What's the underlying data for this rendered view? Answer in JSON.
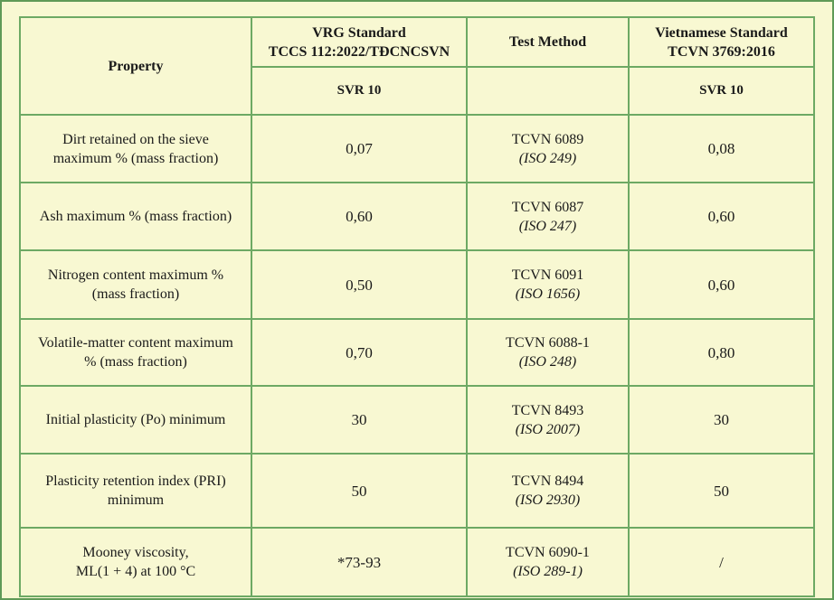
{
  "header": {
    "property": "Property",
    "vrg_line1": "VRG Standard",
    "vrg_line2": "TCCS 112:2022/TĐCNCSVN",
    "test_method": "Test Method",
    "vn_line1": "Vietnamese Standard",
    "vn_line2": "TCVN 3769:2016",
    "vrg_grade": "SVR 10",
    "vn_grade": "SVR 10"
  },
  "rows": [
    {
      "property_l1": "Dirt retained on the sieve",
      "property_l2": "maximum % (mass fraction)",
      "vrg": "0,07",
      "method": "TCVN 6089",
      "iso": "(ISO 249)",
      "vn": "0,08"
    },
    {
      "property_l1": "Ash maximum % (mass fraction)",
      "property_l2": "",
      "vrg": "0,60",
      "method": "TCVN 6087",
      "iso": "(ISO 247)",
      "vn": "0,60"
    },
    {
      "property_l1": "Nitrogen content maximum %",
      "property_l2": "(mass fraction)",
      "vrg": "0,50",
      "method": "TCVN 6091",
      "iso": "(ISO 1656)",
      "vn": "0,60"
    },
    {
      "property_l1": "Volatile-matter content maximum",
      "property_l2": "% (mass fraction)",
      "vrg": "0,70",
      "method": "TCVN 6088-1",
      "iso": "(ISO 248)",
      "vn": "0,80"
    },
    {
      "property_l1": "Initial plasticity (Po) minimum",
      "property_l2": "",
      "vrg": "30",
      "method": "TCVN 8493",
      "iso": "(ISO 2007)",
      "vn": "30"
    },
    {
      "property_l1": "Plasticity retention index (PRI)",
      "property_l2": "minimum",
      "vrg": "50",
      "method": "TCVN 8494",
      "iso": "(ISO 2930)",
      "vn": "50"
    },
    {
      "property_l1": "Mooney viscosity,",
      "property_l2": "ML(1 + 4) at 100 °C",
      "vrg": "*73-93",
      "method": "TCVN 6090-1",
      "iso": "(ISO 289-1)",
      "vn": "/"
    }
  ],
  "colors": {
    "background": "#f8f8d2",
    "border": "#6da964"
  }
}
